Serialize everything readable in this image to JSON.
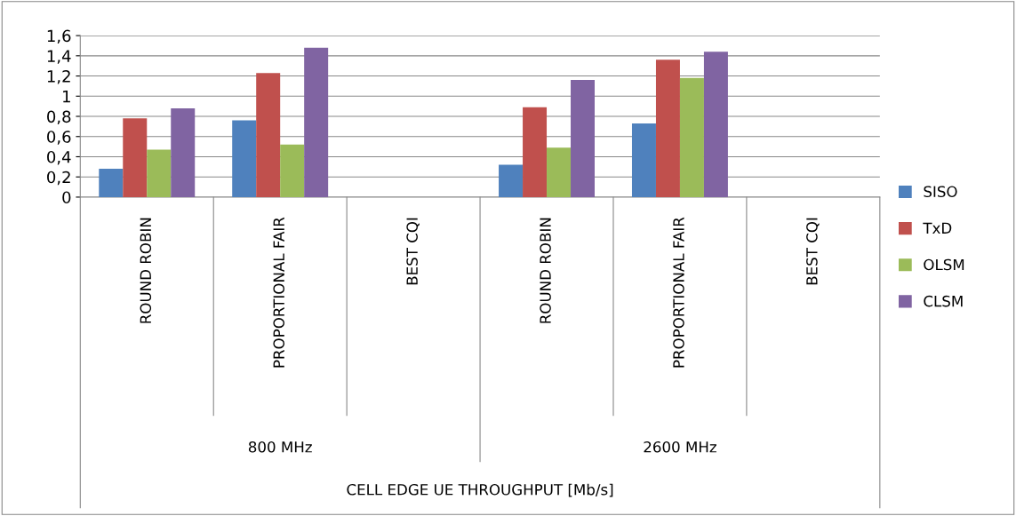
{
  "chart_data": {
    "type": "bar",
    "categories": [
      "ROUND ROBIN",
      "PROPORTIONAL FAIR",
      "BEST CQI",
      "ROUND ROBIN",
      "PROPORTIONAL FAIR",
      "BEST CQI"
    ],
    "annotations": [
      "800 MHz",
      "2600 MHz",
      "CELL EDGE UE THROUGHPUT [Mb/s]"
    ],
    "series": [
      {
        "name": "SISO",
        "color": "#4f81bd",
        "values": [
          0.28,
          0.76,
          null,
          0.32,
          0.73,
          null
        ]
      },
      {
        "name": "TxD",
        "color": "#c0504d",
        "values": [
          0.78,
          1.23,
          null,
          0.89,
          1.36,
          null
        ]
      },
      {
        "name": "OLSM",
        "color": "#9bbb59",
        "values": [
          0.47,
          0.52,
          null,
          0.49,
          1.18,
          null
        ]
      },
      {
        "name": "CLSM",
        "color": "#8064a2",
        "values": [
          0.88,
          1.48,
          null,
          1.16,
          1.44,
          null
        ]
      }
    ],
    "ylim": [
      0,
      1.6
    ],
    "yticks": [
      0,
      {
        "value": 0.2,
        "label": "0,2"
      },
      {
        "value": 0.4,
        "label": "0,4"
      },
      {
        "value": 0.6,
        "label": "0,6"
      },
      {
        "value": 0.8,
        "label": "0,8"
      },
      1,
      {
        "value": 1.2,
        "label": "1,2"
      },
      {
        "value": 1.4,
        "label": "1,4"
      },
      {
        "value": 1.6,
        "label": "1,6"
      }
    ],
    "grid": "y",
    "legend": "right"
  }
}
